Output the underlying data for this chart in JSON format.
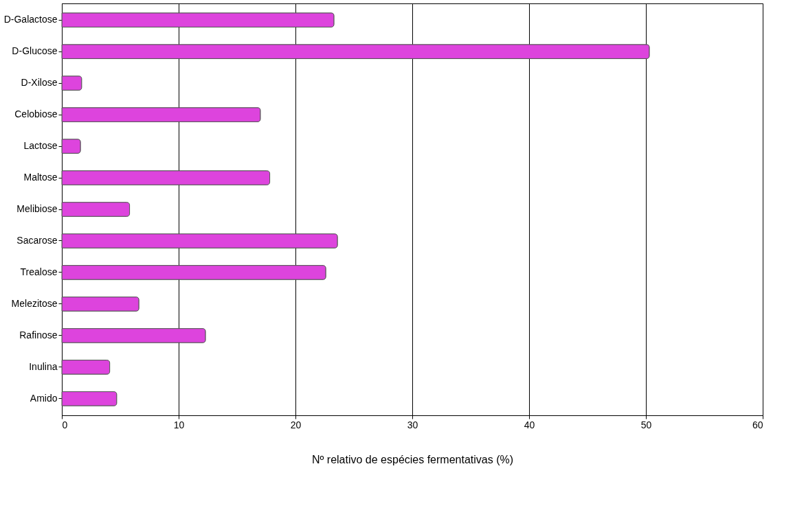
{
  "chart_data": {
    "type": "bar",
    "orientation": "horizontal",
    "xlabel": "Nº relativo de espécies fermentativas (%)",
    "categories": [
      "D-Galactose",
      "D-Glucose",
      "D-Xilose",
      "Celobiose",
      "Lactose",
      "Maltose",
      "Melibiose",
      "Sacarose",
      "Trealose",
      "Melezitose",
      "Rafinose",
      "Inulina",
      "Amido"
    ],
    "values": [
      23.3,
      50.3,
      1.7,
      17.0,
      1.6,
      17.8,
      5.8,
      23.6,
      22.6,
      6.6,
      12.3,
      4.1,
      4.7
    ],
    "color": "#dd44dd",
    "xlim": [
      0,
      60
    ],
    "xticks": [
      0,
      10,
      20,
      30,
      40,
      50,
      60
    ],
    "grid": "x"
  }
}
